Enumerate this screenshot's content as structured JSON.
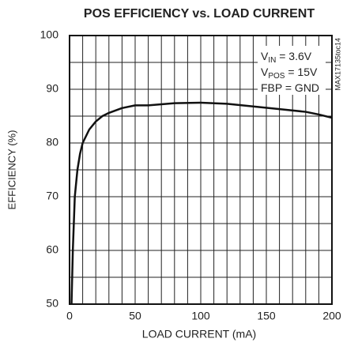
{
  "chart_data": {
    "type": "line",
    "title": "POS EFFICIENCY vs. LOAD CURRENT",
    "x_label": "LOAD CURRENT (mA)",
    "y_label": "EFFICIENCY (%)",
    "side_note": "MAX17135toc14",
    "annotations": [
      {
        "main": "V",
        "sub": "IN",
        "rest": " = 3.6V"
      },
      {
        "main": "V",
        "sub": "POS",
        "rest": " = 15V"
      },
      {
        "main": "FBP = GND",
        "sub": "",
        "rest": ""
      }
    ],
    "xlim": [
      0,
      200
    ],
    "xticks": [
      0,
      50,
      100,
      150,
      200
    ],
    "ylim": [
      50,
      100
    ],
    "yticks": [
      50,
      60,
      70,
      80,
      90,
      100
    ],
    "x_minor_per_major": 5,
    "y_minor_per_major": 2,
    "grid": true,
    "series": [
      {
        "name": "Efficiency",
        "color": "#111111",
        "x": [
          1.5,
          2.5,
          4,
          6,
          8,
          10,
          15,
          20,
          25,
          30,
          40,
          50,
          60,
          70,
          80,
          100,
          120,
          140,
          160,
          180,
          190,
          200
        ],
        "values": [
          50,
          60,
          70,
          75,
          78,
          80,
          82.5,
          84,
          85,
          85.6,
          86.5,
          87,
          87,
          87.2,
          87.4,
          87.5,
          87.3,
          86.8,
          86.3,
          85.8,
          85.3,
          84.7
        ]
      }
    ]
  }
}
